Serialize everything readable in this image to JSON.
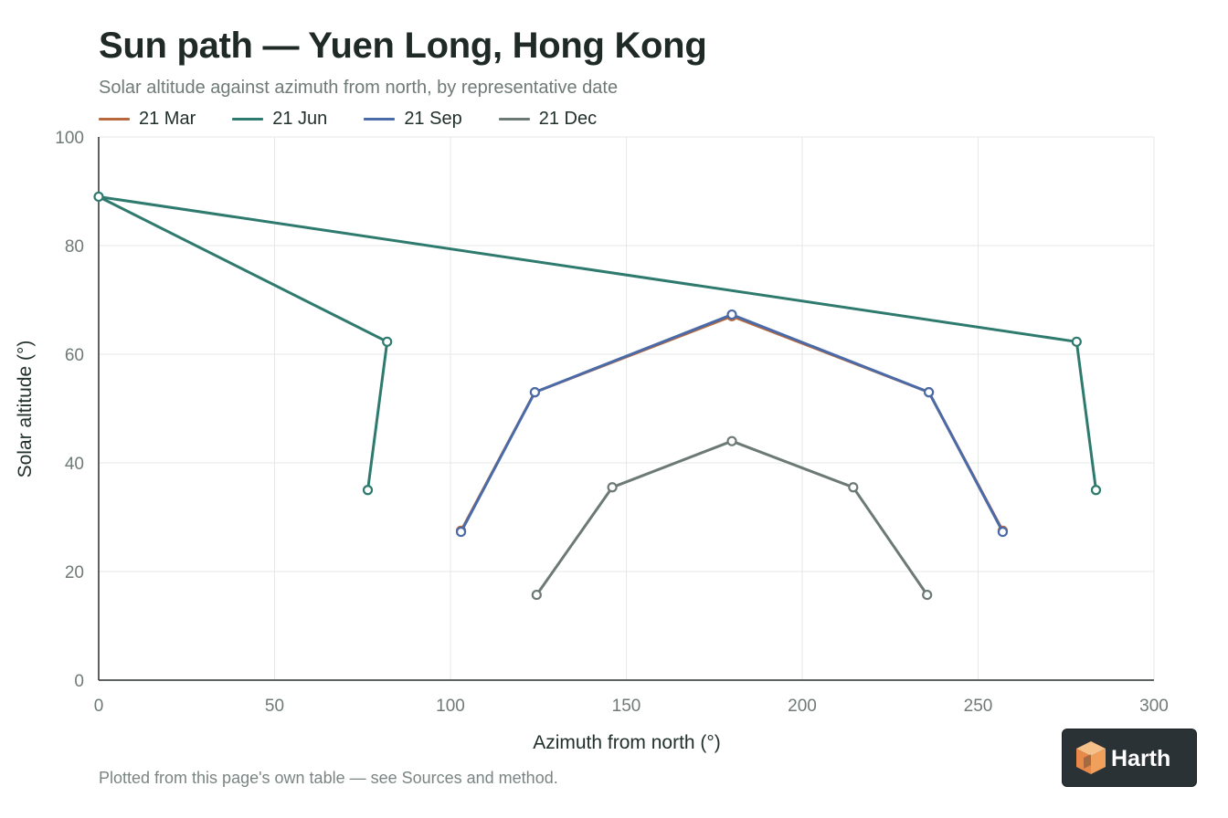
{
  "chart_data": {
    "type": "line",
    "title": "Sun path — Yuen Long, Hong Kong",
    "subtitle": "Solar altitude against azimuth from north, by representative date",
    "xlabel": "Azimuth from north (°)",
    "ylabel": "Solar altitude (°)",
    "xlim": [
      0,
      300
    ],
    "ylim": [
      0,
      100
    ],
    "xticks": [
      "0",
      "50",
      "100",
      "150",
      "200",
      "250",
      "300"
    ],
    "yticks": [
      "0",
      "20",
      "40",
      "60",
      "80",
      "100"
    ],
    "grid": true,
    "legend_position": "top-left",
    "series": [
      {
        "name": "21 Mar",
        "color": "#b8683d",
        "x": [
          103,
          124,
          180,
          236,
          257
        ],
        "y": [
          27.5,
          53,
          67,
          53,
          27.5
        ]
      },
      {
        "name": "21 Jun",
        "color": "#2e7a6e",
        "x": [
          76.5,
          82,
          0,
          278,
          283.5
        ],
        "y": [
          35,
          62.3,
          89,
          62.3,
          35
        ]
      },
      {
        "name": "21 Sep",
        "color": "#4a6aa8",
        "x": [
          103,
          124,
          180,
          236,
          257
        ],
        "y": [
          27.3,
          53,
          67.3,
          53,
          27.3
        ]
      },
      {
        "name": "21 Dec",
        "color": "#6c7975",
        "x": [
          124.5,
          146,
          180,
          214.5,
          235.5
        ],
        "y": [
          15.7,
          35.5,
          44,
          35.5,
          15.7
        ]
      }
    ]
  },
  "footnote": "Plotted from this page's own table — see Sources and method.",
  "brand": {
    "name": "Harth",
    "logo_icon": "cube-logo-icon",
    "background": "#2b3236",
    "accent": "#f0a05a"
  }
}
